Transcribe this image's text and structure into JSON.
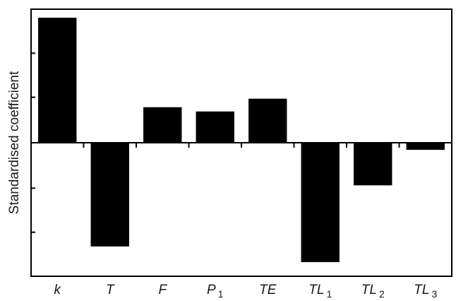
{
  "chart_data": {
    "type": "bar",
    "title": "",
    "xlabel": "",
    "ylabel": "Standardised coefficient",
    "categories": [
      {
        "base": "k",
        "sub": ""
      },
      {
        "base": "T",
        "sub": ""
      },
      {
        "base": "F",
        "sub": ""
      },
      {
        "base": "P",
        "sub": "1"
      },
      {
        "base": "TE",
        "sub": ""
      },
      {
        "base": "TL",
        "sub": "1"
      },
      {
        "base": "TL",
        "sub": "2"
      },
      {
        "base": "TL",
        "sub": "3"
      }
    ],
    "values": [
      0.88,
      -0.73,
      0.25,
      0.22,
      0.31,
      -0.84,
      -0.3,
      -0.05
    ],
    "ylim": [
      -0.94,
      0.94
    ],
    "yticks": [
      -0.63,
      -0.32,
      0.32,
      0.63
    ],
    "ytick_labels_shown": false,
    "grid": false,
    "colors": {
      "bar": "#000000",
      "axis": "#000000",
      "text": "#1a1a1a"
    }
  }
}
